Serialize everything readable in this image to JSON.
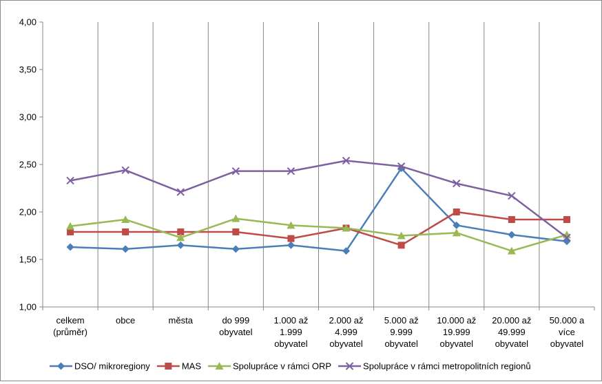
{
  "chart_data": {
    "type": "line",
    "title": "",
    "xlabel": "",
    "ylabel": "",
    "ylim": [
      1.0,
      4.0
    ],
    "yticks": [
      "1,00",
      "1,50",
      "2,00",
      "2,50",
      "3,00",
      "3,50",
      "4,00"
    ],
    "ytick_values": [
      1.0,
      1.5,
      2.0,
      2.5,
      3.0,
      3.5,
      4.0
    ],
    "grid": "vertical category lines",
    "legend_position": "bottom",
    "categories": [
      [
        "celkem",
        "(průměr)"
      ],
      [
        "obce"
      ],
      [
        "města"
      ],
      [
        "do 999",
        "obyvatel"
      ],
      [
        "1.000 až",
        "1.999",
        "obyvatel"
      ],
      [
        "2.000 až",
        "4.999",
        "obyvatel"
      ],
      [
        "5.000 až",
        "9.999",
        "obyvatel"
      ],
      [
        "10.000 až",
        "19.999",
        "obyvatel"
      ],
      [
        "20.000 až",
        "49.999",
        "obyvatel"
      ],
      [
        "50.000 a",
        "více",
        "obyvatel"
      ]
    ],
    "series": [
      {
        "name": "DSO/ mikroregiony",
        "color": "#4a7ebb",
        "marker": "diamond",
        "values": [
          1.63,
          1.61,
          1.65,
          1.61,
          1.65,
          1.59,
          2.46,
          1.86,
          1.76,
          1.69
        ]
      },
      {
        "name": "MAS",
        "color": "#be4b48",
        "marker": "square",
        "values": [
          1.79,
          1.79,
          1.79,
          1.79,
          1.72,
          1.83,
          1.65,
          2.0,
          1.92,
          1.92
        ]
      },
      {
        "name": "Spolupráce v rámci ORP",
        "color": "#98b954",
        "marker": "triangle",
        "values": [
          1.85,
          1.92,
          1.73,
          1.93,
          1.86,
          1.83,
          1.75,
          1.78,
          1.59,
          1.76
        ]
      },
      {
        "name": "Spolupráce v rámci metropolitních regionů",
        "color": "#7d60a0",
        "marker": "x",
        "values": [
          2.33,
          2.44,
          2.21,
          2.43,
          2.43,
          2.54,
          2.48,
          2.3,
          2.17,
          1.73
        ]
      }
    ]
  }
}
